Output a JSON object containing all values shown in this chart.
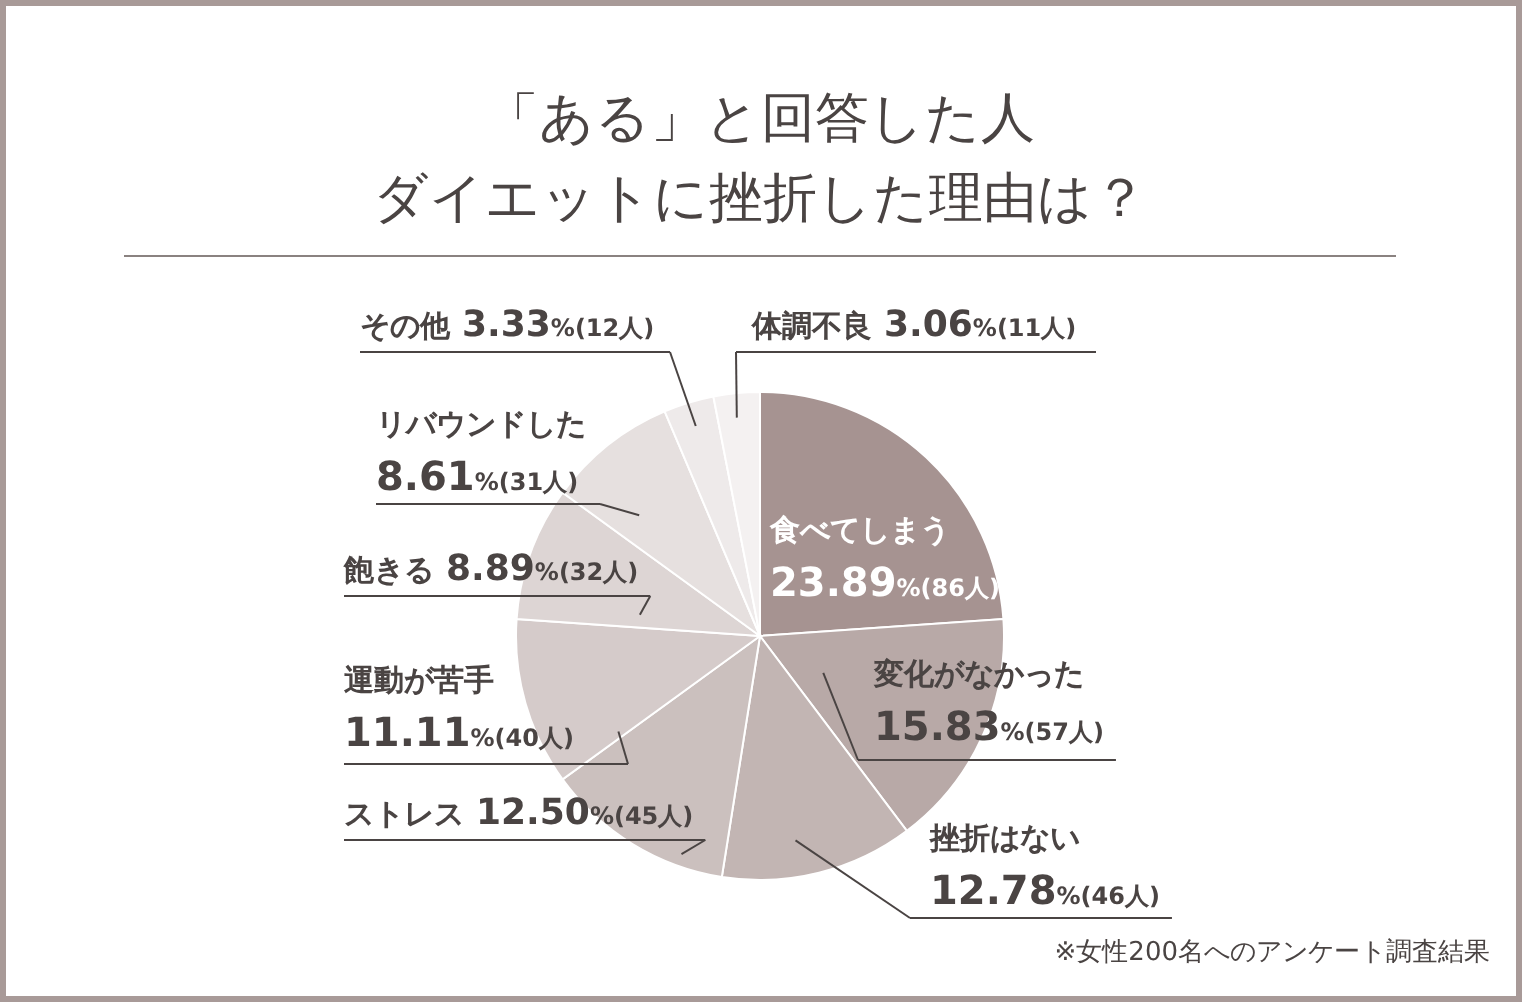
{
  "chart_data": {
    "type": "pie",
    "title": "「ある」と回答した人",
    "subtitle": "ダイエットに挫折した理由は？",
    "categories": [
      "食べてしまう",
      "変化がなかった",
      "挫折はない",
      "ストレス",
      "運動が苦手",
      "飽きる",
      "リバウンドした",
      "その他",
      "体調不良"
    ],
    "values": [
      23.89,
      15.83,
      12.78,
      12.5,
      11.11,
      8.89,
      8.61,
      3.33,
      3.06
    ],
    "value_labels": [
      "23.89%(86人)",
      "15.83%(57人)",
      "12.78%(46人)",
      "12.50%(45人)",
      "11.11%(40人)",
      "8.89%(32人)",
      "8.61%(31人)",
      "3.33%(12人)",
      "3.06%(11人)"
    ],
    "colors": [
      "#a69391",
      "#b8a9a7",
      "#c2b5b3",
      "#cbc0be",
      "#d5cbca",
      "#ddd5d4",
      "#e6e0df",
      "#eeeaea",
      "#f4f1f1"
    ],
    "annotations": [
      "※女性200名へのアンケート調査結果"
    ]
  }
}
